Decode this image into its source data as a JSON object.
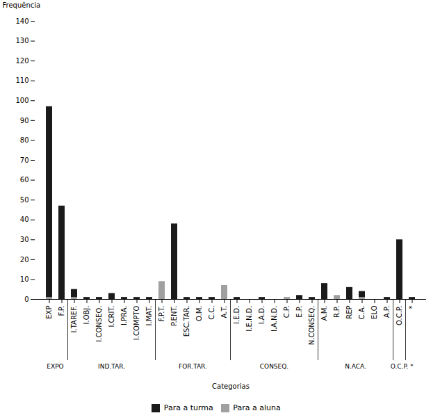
{
  "chart_data": {
    "type": "bar",
    "categories": [
      "EXP",
      "F.P.",
      "I.TAREF.",
      "I.OBJ.",
      "I.CONSEQ.",
      "I.CRIT.",
      "I.PRA.",
      "I.COMPTO",
      "I.MAT.",
      "F.P.T.",
      "P.ENT.",
      "ESC.TAR.",
      "O.M.",
      "C.C.",
      "A.T.",
      "I.E.D.",
      "I.E.N.D.",
      "I.A.D.",
      "I.A.N.D.",
      "C.P.",
      "E.P.",
      "N.CONSEQ.",
      "A.M.",
      "R.P.",
      "REP",
      "C.A.",
      "ELO",
      "A.P.",
      "O.C.P.",
      "*"
    ],
    "series": [
      {
        "name": "Para a turma",
        "color": "#1a1a1a",
        "values": [
          97,
          47,
          5,
          1,
          1,
          3,
          1,
          1,
          1,
          8,
          38,
          1,
          1,
          1,
          0,
          1,
          0,
          1,
          0,
          0,
          2,
          1,
          8,
          0,
          6,
          4,
          0,
          1,
          30,
          1
        ]
      },
      {
        "name": "Para a aluna",
        "color": "#a0a0a0",
        "values": [
          1,
          0,
          1,
          0,
          0,
          0,
          0,
          0,
          0,
          9,
          0,
          0,
          0,
          0,
          7,
          0,
          0,
          0,
          0,
          1,
          0,
          0,
          0,
          2,
          0,
          1,
          0,
          0,
          0,
          0
        ]
      }
    ],
    "groups": [
      {
        "name": "EXPO",
        "categories": [
          "EXP",
          "F.P."
        ]
      },
      {
        "name": "IND.TAR.",
        "categories": [
          "I.TAREF.",
          "I.OBJ.",
          "I.CONSEQ.",
          "I.CRIT.",
          "I.PRA.",
          "I.COMPTO",
          "I.MAT."
        ]
      },
      {
        "name": "FOR.TAR.",
        "categories": [
          "F.P.T.",
          "P.ENT.",
          "ESC.TAR.",
          "O.M.",
          "C.C.",
          "A.T."
        ]
      },
      {
        "name": "CONSEQ.",
        "categories": [
          "I.E.D.",
          "I.E.N.D.",
          "I.A.D.",
          "I.A.N.D.",
          "C.P.",
          "E.P.",
          "N.CONSEQ."
        ]
      },
      {
        "name": "N.ACA.",
        "categories": [
          "A.M.",
          "R.P.",
          "REP",
          "C.A.",
          "ELO",
          "A.P."
        ]
      },
      {
        "name": "O.C.P.",
        "categories": [
          "O.C.P."
        ]
      },
      {
        "name": "*",
        "categories": [
          "*"
        ]
      }
    ],
    "ylabel": "Frequência",
    "xlabel": "Categorias",
    "ylim": [
      0,
      140
    ],
    "yticks": [
      0,
      10,
      20,
      30,
      40,
      50,
      60,
      70,
      80,
      90,
      100,
      110,
      120,
      130,
      140
    ],
    "stacked": false,
    "grid": false,
    "legend": "bottom"
  }
}
